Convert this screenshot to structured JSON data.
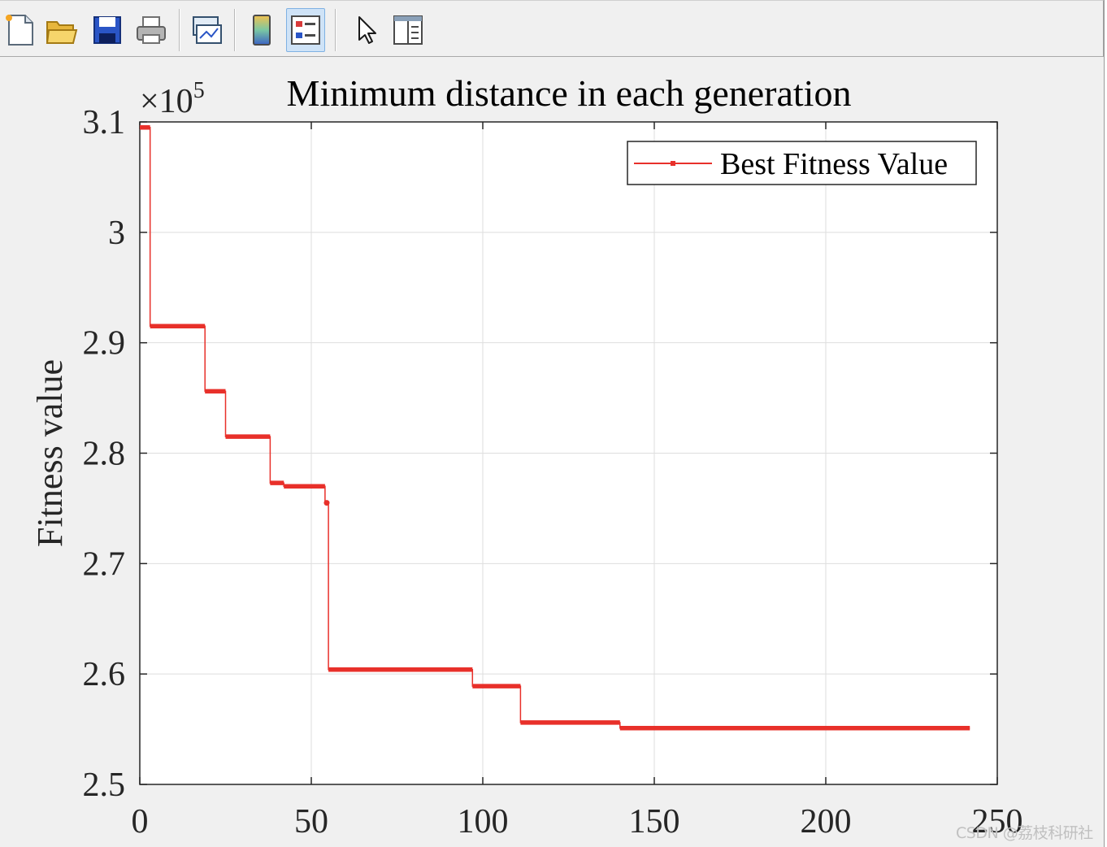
{
  "toolbar": {
    "buttons": [
      {
        "name": "new-figure-icon",
        "active": false
      },
      {
        "name": "open-file-icon",
        "active": false
      },
      {
        "name": "save-icon",
        "active": false
      },
      {
        "name": "print-icon",
        "active": false
      },
      {
        "name": "link-plot-icon",
        "active": false
      },
      {
        "name": "colorbar-icon",
        "active": false
      },
      {
        "name": "legend-icon",
        "active": true
      },
      {
        "name": "edit-plot-cursor-icon",
        "active": false
      },
      {
        "name": "property-inspector-icon",
        "active": false
      }
    ]
  },
  "chart_data": {
    "type": "line",
    "title": "Minimum distance in each generation",
    "xlabel": "",
    "ylabel": "Fitness value",
    "exponent_label": "×10",
    "exponent_power": "5",
    "xlim": [
      0,
      250
    ],
    "ylim": [
      2.5,
      3.1
    ],
    "xticks": [
      "0",
      "50",
      "100",
      "150",
      "200",
      "250"
    ],
    "yticks": [
      "2.5",
      "2.6",
      "2.7",
      "2.8",
      "2.9",
      "3",
      "3.1"
    ],
    "grid": true,
    "legend_position": "top-right",
    "series": [
      {
        "name": "Best Fitness Value",
        "color": "#e8302a",
        "marker": "point",
        "step_points": [
          [
            0,
            3.095
          ],
          [
            3,
            3.095
          ],
          [
            3,
            2.915
          ],
          [
            19,
            2.915
          ],
          [
            19,
            2.856
          ],
          [
            25,
            2.856
          ],
          [
            25,
            2.815
          ],
          [
            38,
            2.815
          ],
          [
            38,
            2.773
          ],
          [
            42,
            2.773
          ],
          [
            42,
            2.77
          ],
          [
            54,
            2.77
          ],
          [
            54,
            2.755
          ],
          [
            55,
            2.755
          ],
          [
            55,
            2.604
          ],
          [
            97,
            2.604
          ],
          [
            97,
            2.589
          ],
          [
            111,
            2.589
          ],
          [
            111,
            2.556
          ],
          [
            140,
            2.556
          ],
          [
            140,
            2.551
          ],
          [
            242,
            2.551
          ]
        ]
      }
    ]
  },
  "watermark": "CSDN @荔枝科研社"
}
